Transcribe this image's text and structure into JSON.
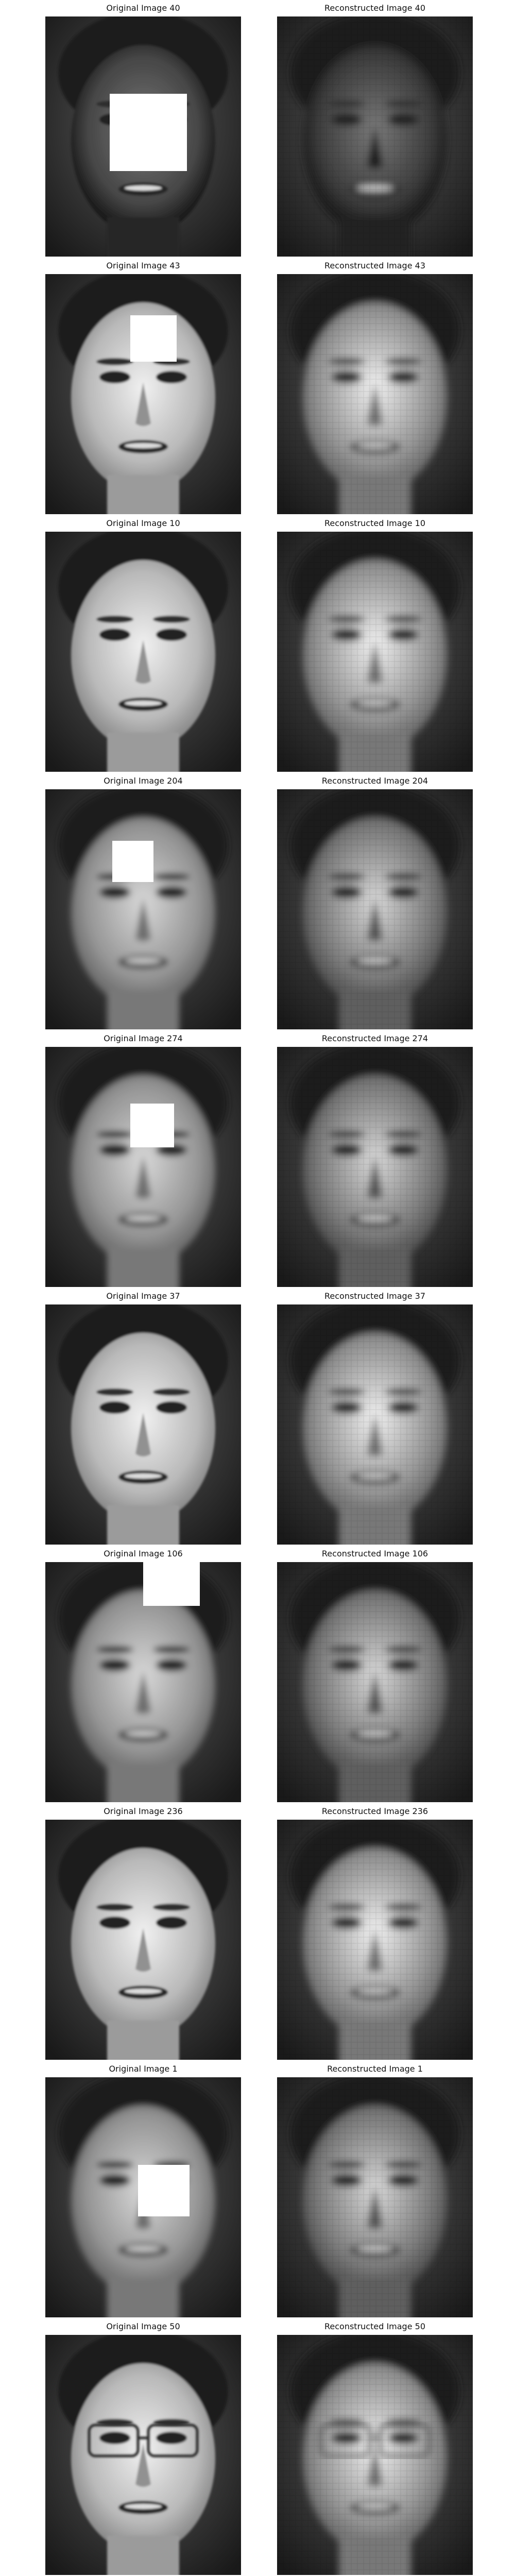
{
  "figure": {
    "rows": [
      {
        "original_title": "Original Image 40",
        "reconstructed_title": "Reconstructed Image 40",
        "occluded": true,
        "tone": "dark",
        "glasses": false
      },
      {
        "original_title": "Original Image 43",
        "reconstructed_title": "Reconstructed Image 43",
        "occluded": true,
        "tone": "light",
        "glasses": false
      },
      {
        "original_title": "Original Image 10",
        "reconstructed_title": "Reconstructed Image 10",
        "occluded": false,
        "tone": "light",
        "glasses": false
      },
      {
        "original_title": "Original Image 204",
        "reconstructed_title": "Reconstructed Image 204",
        "occluded": true,
        "tone": "medium",
        "glasses": false
      },
      {
        "original_title": "Original Image 274",
        "reconstructed_title": "Reconstructed Image 274",
        "occluded": true,
        "tone": "medium",
        "glasses": false
      },
      {
        "original_title": "Original Image 37",
        "reconstructed_title": "Reconstructed Image 37",
        "occluded": false,
        "tone": "light",
        "glasses": false
      },
      {
        "original_title": "Original Image 106",
        "reconstructed_title": "Reconstructed Image 106",
        "occluded": true,
        "tone": "medium",
        "glasses": false
      },
      {
        "original_title": "Original Image 236",
        "reconstructed_title": "Reconstructed Image 236",
        "occluded": false,
        "tone": "light",
        "glasses": false
      },
      {
        "original_title": "Original Image 1",
        "reconstructed_title": "Reconstructed Image 1",
        "occluded": true,
        "tone": "medium",
        "glasses": false
      },
      {
        "original_title": "Original Image 50",
        "reconstructed_title": "Reconstructed Image 50",
        "occluded": false,
        "tone": "light",
        "glasses": true
      }
    ]
  }
}
